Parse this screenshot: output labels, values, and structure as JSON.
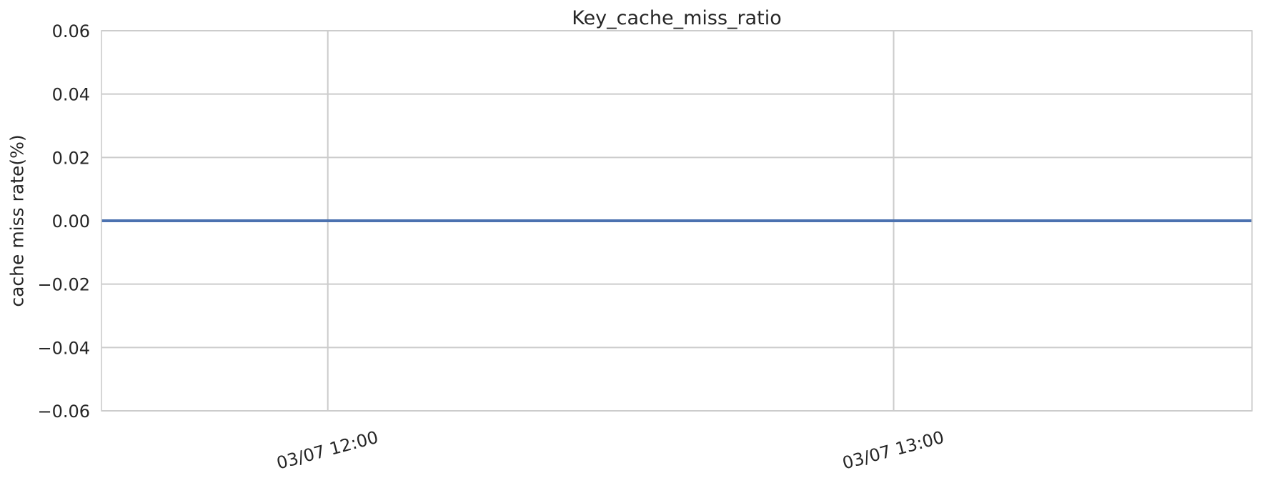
{
  "chart_data": {
    "type": "line",
    "title": "Key_cache_miss_ratio",
    "xlabel": "",
    "ylabel": "cache miss rate(%)",
    "ylim": [
      -0.06,
      0.06
    ],
    "yticks": [
      -0.06,
      -0.04,
      -0.02,
      0.0,
      0.02,
      0.04,
      0.06
    ],
    "ytick_labels": [
      "−0.06",
      "−0.04",
      "−0.02",
      "0.00",
      "0.02",
      "0.04",
      "0.06"
    ],
    "xlim": [
      "03/07 11:36",
      "03/07 13:38"
    ],
    "xticks": [
      "03/07 12:00",
      "03/07 13:00"
    ],
    "xtick_labels": [
      "03/07 12:00",
      "03/07 13:00"
    ],
    "grid": true,
    "series": [
      {
        "color": "#4c72b0",
        "x": [
          "03/07 11:36",
          "03/07 13:38"
        ],
        "y": [
          0.0,
          0.0
        ]
      }
    ]
  }
}
